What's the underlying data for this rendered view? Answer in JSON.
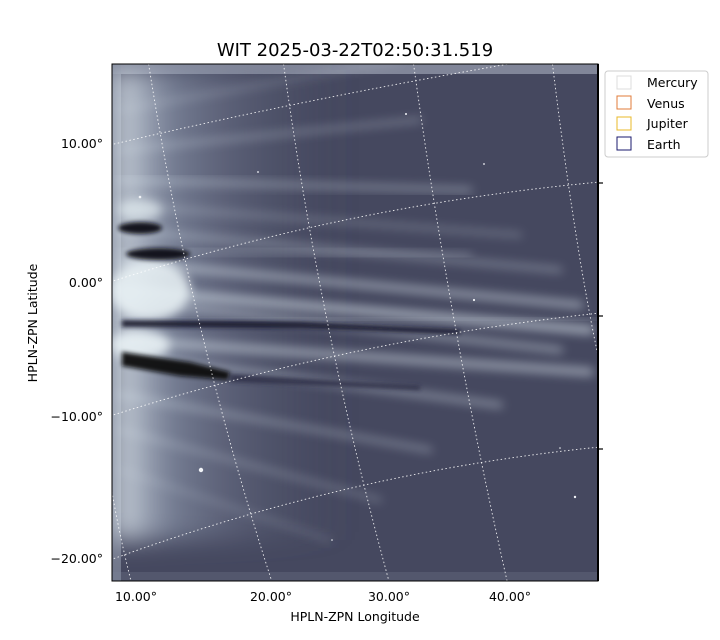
{
  "chart_data": {
    "type": "heatmap",
    "title": "WIT 2025-03-22T02:50:31.519",
    "xlabel": "HPLN-ZPN Longitude",
    "ylabel": "HPLN-ZPN Latitude",
    "x_ticks": [
      "10.00°",
      "20.00°",
      "30.00°",
      "40.00°"
    ],
    "y_ticks": [
      "10.00°",
      "0.00°",
      "−10.00°",
      "−20.00°"
    ],
    "colormap": "bone",
    "grid": true,
    "legend_position": "upper-right-outside",
    "legend": [
      {
        "name": "Mercury",
        "color": "#dcdcdc"
      },
      {
        "name": "Venus",
        "color": "#e07b39"
      },
      {
        "name": "Jupiter",
        "color": "#e8b82a"
      },
      {
        "name": "Earth",
        "color": "#1a1a6e"
      }
    ]
  }
}
